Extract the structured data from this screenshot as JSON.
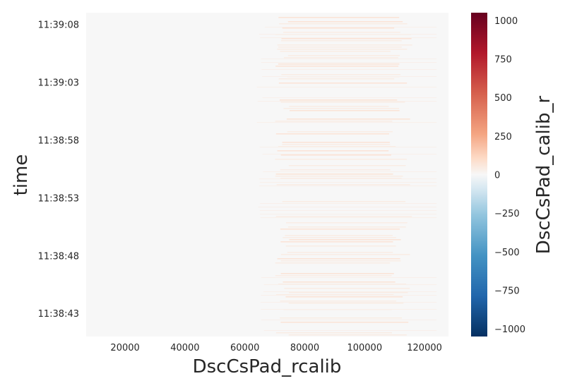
{
  "chart_data": {
    "type": "heatmap",
    "xlabel": "DscCsPad_rcalib",
    "ylabel": "time",
    "x_ticks": [
      20000,
      40000,
      60000,
      80000,
      100000,
      120000
    ],
    "x_tick_labels": [
      "20000",
      "40000",
      "60000",
      "80000",
      "100000",
      "120000"
    ],
    "xlim": [
      7000,
      128000
    ],
    "y_tick_labels": [
      "11:39:08",
      "11:39:03",
      "11:38:58",
      "11:38:53",
      "11:38:48",
      "11:38:43"
    ],
    "ylim": [
      "11:38:41",
      "11:39:09"
    ],
    "colorbar": {
      "label": "DscCsPad_calib_r",
      "colormap": "RdBu_r",
      "range": [
        -1050,
        1050
      ],
      "ticks": [
        1000,
        750,
        500,
        250,
        0,
        -250,
        -500,
        -750,
        -1000
      ],
      "tick_labels": [
        "1000",
        "750",
        "500",
        "250",
        "0",
        "−250",
        "−500",
        "−750",
        "−1000"
      ]
    },
    "values_summary": "near zero across grid, faint positive streaks between 70000 and 115000",
    "grid": false,
    "facecolor": "#eaeaf2"
  }
}
